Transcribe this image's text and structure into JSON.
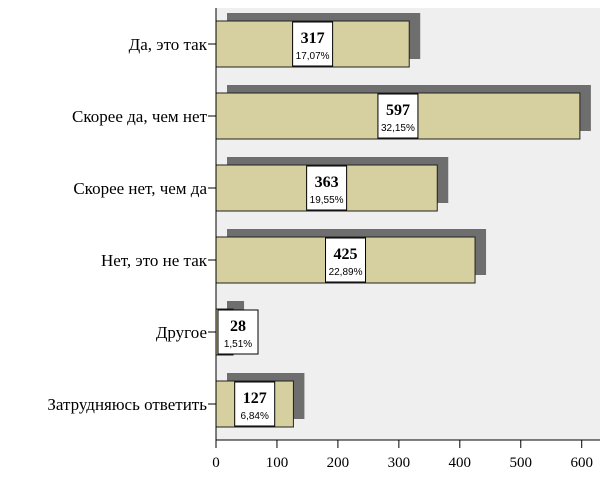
{
  "chart_data": {
    "type": "bar",
    "orientation": "horizontal",
    "categories": [
      "Да, это так",
      "Скорее да, чем нет",
      "Скорее нет, чем да",
      "Нет, это не так",
      "Другое",
      "Затрудняюсь ответить"
    ],
    "values": [
      317,
      597,
      363,
      425,
      28,
      127
    ],
    "value_labels": [
      "317",
      "597",
      "363",
      "425",
      "28",
      "127"
    ],
    "percent_labels": [
      "17,07%",
      "32,15%",
      "19,55%",
      "22,89%",
      "1,51%",
      "6,84%"
    ],
    "xlim": [
      0,
      630
    ],
    "xticks": [
      0,
      100,
      200,
      300,
      400,
      500,
      600
    ],
    "xtick_labels": [
      "0",
      "100",
      "200",
      "300",
      "400",
      "500",
      "600"
    ],
    "grid": false,
    "legend": "none",
    "colors": {
      "bar_fill": "#d6d0a0",
      "bar_stroke": "#222222",
      "shadow": "#6e6e6e",
      "plot_bg": "#efefef"
    }
  }
}
